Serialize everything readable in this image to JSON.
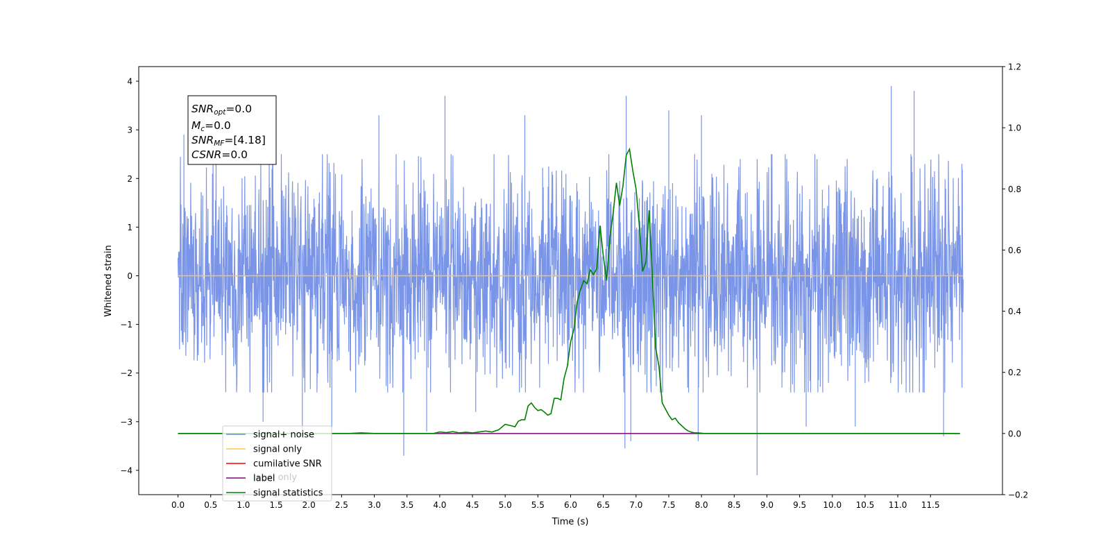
{
  "chart_data": {
    "type": "line",
    "title": "",
    "xlabel": "Time (s)",
    "ylabel": "Whitened strain",
    "xlim": [
      -0.6,
      12.6
    ],
    "ylim": [
      -4.5,
      4.3
    ],
    "y2lim": [
      -0.2,
      1.2
    ],
    "xticks": [
      0.0,
      0.5,
      1.0,
      1.5,
      2.0,
      2.5,
      3.0,
      3.5,
      4.0,
      4.5,
      5.0,
      5.5,
      6.0,
      6.5,
      7.0,
      7.5,
      8.0,
      8.5,
      9.0,
      9.5,
      10.0,
      10.5,
      11.0,
      11.5
    ],
    "xtick_labels": [
      "0.0",
      "0.5",
      "1.0",
      "1.5",
      "2.0",
      "2.5",
      "3.0",
      "3.5",
      "4.0",
      "4.5",
      "5.0",
      "5.5",
      "6.0",
      "6.5",
      "7.0",
      "7.5",
      "8.0",
      "8.5",
      "9.0",
      "9.5",
      "10.0",
      "10.5",
      "11.0",
      "11.5"
    ],
    "yticks": [
      -4,
      -3,
      -2,
      -1,
      0,
      1,
      2,
      3,
      4
    ],
    "ytick_labels": [
      "−4",
      "−3",
      "−2",
      "−1",
      "0",
      "1",
      "2",
      "3",
      "4"
    ],
    "y2ticks": [
      -0.2,
      0.0,
      0.2,
      0.4,
      0.6,
      0.8,
      1.0,
      1.2
    ],
    "y2tick_labels": [
      "−0.2",
      "0.0",
      "0.2",
      "0.4",
      "0.6",
      "0.8",
      "1.0",
      "1.2"
    ],
    "grid": false,
    "legend_position": "lower-left",
    "noise_envelope": {
      "x_range": [
        0.0,
        12.0
      ],
      "typical_range": [
        -2.0,
        2.0
      ],
      "extremes": [
        {
          "x": 0.09,
          "y": 2.9
        },
        {
          "x": 1.3,
          "y": -3.0
        },
        {
          "x": 1.9,
          "y": -3.2
        },
        {
          "x": 2.35,
          "y": -3.1
        },
        {
          "x": 3.07,
          "y": 3.3
        },
        {
          "x": 3.45,
          "y": -3.7
        },
        {
          "x": 3.8,
          "y": -3.2
        },
        {
          "x": 4.08,
          "y": 3.7
        },
        {
          "x": 4.55,
          "y": -2.8
        },
        {
          "x": 5.3,
          "y": 3.3
        },
        {
          "x": 6.85,
          "y": 3.7
        },
        {
          "x": 6.83,
          "y": -3.55
        },
        {
          "x": 6.92,
          "y": -3.4
        },
        {
          "x": 7.5,
          "y": 3.4
        },
        {
          "x": 7.95,
          "y": -3.4
        },
        {
          "x": 8.0,
          "y": 3.3
        },
        {
          "x": 8.85,
          "y": -4.1
        },
        {
          "x": 9.6,
          "y": -3.1
        },
        {
          "x": 10.35,
          "y": -3.1
        },
        {
          "x": 10.9,
          "y": 3.9
        },
        {
          "x": 11.25,
          "y": 3.8
        },
        {
          "x": 11.7,
          "y": -3.3
        },
        {
          "x": 11.98,
          "y": 2.3
        }
      ]
    },
    "series": [
      {
        "name": "signal+ noise",
        "color": "#6b8ae6",
        "axis": "left",
        "style": "noise"
      },
      {
        "name": "signal only",
        "color": "#ffc34d",
        "axis": "left",
        "x": [
          0.0,
          12.0
        ],
        "y": [
          0.0,
          0.0
        ]
      },
      {
        "name": "cumilative SNR",
        "color": "#ff0000",
        "axis": "left",
        "x": [],
        "y": []
      },
      {
        "name": "label",
        "color": "#800080",
        "axis": "right",
        "x": [
          0.0,
          3.9,
          4.0,
          11.95
        ],
        "y": [
          0.0,
          0.0,
          0.0,
          0.0
        ]
      },
      {
        "name": "signal statistics",
        "color": "#008000",
        "axis": "right",
        "x": [
          0.0,
          0.2,
          0.4,
          0.6,
          0.8,
          1.0,
          1.2,
          1.4,
          1.6,
          1.8,
          2.0,
          2.2,
          2.4,
          2.6,
          2.8,
          3.0,
          3.2,
          3.4,
          3.6,
          3.8,
          3.9,
          4.0,
          4.1,
          4.2,
          4.3,
          4.4,
          4.5,
          4.6,
          4.7,
          4.8,
          4.9,
          5.0,
          5.1,
          5.15,
          5.2,
          5.25,
          5.3,
          5.35,
          5.4,
          5.45,
          5.5,
          5.55,
          5.6,
          5.65,
          5.7,
          5.75,
          5.8,
          5.85,
          5.9,
          5.95,
          6.0,
          6.05,
          6.1,
          6.15,
          6.2,
          6.25,
          6.3,
          6.35,
          6.4,
          6.45,
          6.5,
          6.55,
          6.6,
          6.65,
          6.7,
          6.75,
          6.8,
          6.85,
          6.9,
          6.95,
          7.0,
          7.05,
          7.1,
          7.15,
          7.2,
          7.25,
          7.3,
          7.35,
          7.4,
          7.45,
          7.5,
          7.55,
          7.6,
          7.65,
          7.7,
          7.75,
          7.8,
          7.85,
          7.9,
          7.95,
          8.0,
          8.05,
          8.1,
          8.15,
          8.2,
          8.25,
          8.3,
          8.4,
          8.6,
          8.8,
          9.0,
          9.5,
          10.0,
          10.5,
          11.0,
          11.5,
          11.95
        ],
        "y": [
          0.0,
          0.0,
          0.0,
          0.0,
          0.0,
          0.0,
          0.0,
          0.0,
          0.0,
          0.0,
          0.0,
          0.0,
          0.0,
          0.0,
          0.002,
          0.0,
          0.0,
          0.0,
          0.0,
          0.0,
          0.0,
          0.005,
          0.003,
          0.006,
          0.002,
          0.004,
          0.002,
          0.005,
          0.008,
          0.005,
          0.012,
          0.03,
          0.025,
          0.022,
          0.04,
          0.045,
          0.045,
          0.09,
          0.1,
          0.085,
          0.075,
          0.078,
          0.07,
          0.06,
          0.065,
          0.115,
          0.115,
          0.11,
          0.18,
          0.22,
          0.3,
          0.34,
          0.43,
          0.47,
          0.5,
          0.49,
          0.535,
          0.52,
          0.54,
          0.68,
          0.58,
          0.5,
          0.64,
          0.72,
          0.82,
          0.745,
          0.81,
          0.91,
          0.93,
          0.86,
          0.8,
          0.68,
          0.53,
          0.56,
          0.73,
          0.51,
          0.28,
          0.22,
          0.1,
          0.08,
          0.06,
          0.045,
          0.05,
          0.035,
          0.025,
          0.015,
          0.008,
          0.004,
          0.002,
          0.002,
          0.001,
          0.0,
          0.0,
          0.0,
          0.0,
          0.0,
          0.0,
          0.0,
          0.0,
          0.0,
          0.0,
          0.0,
          0.0,
          0.0,
          0.0,
          0.0,
          0.0
        ]
      }
    ],
    "annotation": {
      "lines": [
        {
          "var": "SNR",
          "sub": "opt",
          "value": "=0.0"
        },
        {
          "var": "M",
          "sub": "c",
          "value": "=0.0"
        },
        {
          "var": "SNR",
          "sub": "MF",
          "value": "=[4.18]"
        },
        {
          "var": "CSNR",
          "sub": "",
          "value": "=0.0"
        }
      ]
    },
    "legend_overlap_text": {
      "text": "label only",
      "color": "#c8c8c8"
    }
  }
}
